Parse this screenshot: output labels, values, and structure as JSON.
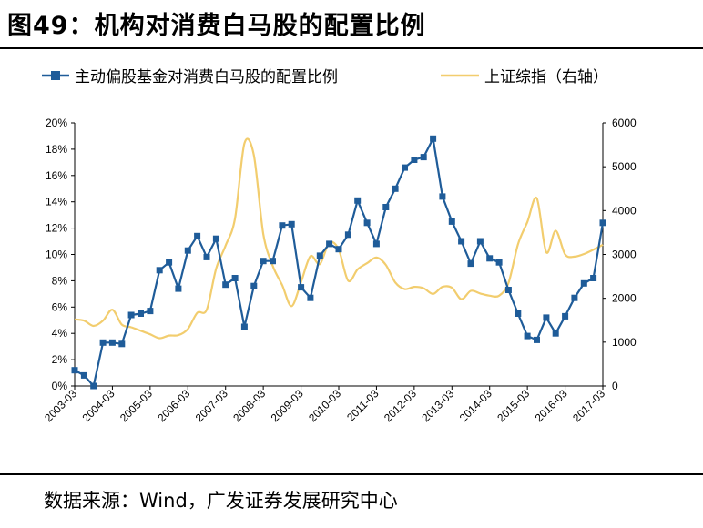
{
  "title": "图49：机构对消费白马股的配置比例",
  "source": "数据来源：Wind，广发证券发展研究中心",
  "colors": {
    "series1": "#1F5C99",
    "series2": "#F2CD6E"
  },
  "chart_data": {
    "type": "line",
    "categories": [
      "2003-03",
      "2004-03",
      "2005-03",
      "2006-03",
      "2007-03",
      "2008-03",
      "2009-03",
      "2010-03",
      "2011-03",
      "2012-03",
      "2013-03",
      "2014-03",
      "2015-03",
      "2016-03",
      "2017-03"
    ],
    "y_left": {
      "ylim": [
        0,
        20
      ],
      "ticks": [
        "0%",
        "2%",
        "4%",
        "6%",
        "8%",
        "10%",
        "12%",
        "14%",
        "16%",
        "18%",
        "20%"
      ]
    },
    "y_right": {
      "ylim": [
        0,
        6000
      ],
      "ticks": [
        "0",
        "1000",
        "2000",
        "3000",
        "4000",
        "5000",
        "6000"
      ]
    },
    "series": [
      {
        "name": "主动偏股基金对消费白马股的配置比例",
        "axis": "left",
        "marker": "square",
        "unit": "%",
        "x": [
          2003.0,
          2003.25,
          2003.5,
          2003.75,
          2004.0,
          2004.25,
          2004.5,
          2004.75,
          2005.0,
          2005.25,
          2005.5,
          2005.75,
          2006.0,
          2006.25,
          2006.5,
          2006.75,
          2007.0,
          2007.25,
          2007.5,
          2007.75,
          2008.0,
          2008.25,
          2008.5,
          2008.75,
          2009.0,
          2009.25,
          2009.5,
          2009.75,
          2010.0,
          2010.25,
          2010.5,
          2010.75,
          2011.0,
          2011.25,
          2011.5,
          2011.75,
          2012.0,
          2012.25,
          2012.5,
          2012.75,
          2013.0,
          2013.25,
          2013.5,
          2013.75,
          2014.0,
          2014.25,
          2014.5,
          2014.75,
          2015.0,
          2015.25,
          2015.5,
          2015.75,
          2016.0,
          2016.25,
          2016.5,
          2016.75,
          2017.0
        ],
        "values": [
          1.2,
          0.8,
          0.0,
          3.3,
          3.3,
          3.2,
          5.4,
          5.5,
          5.7,
          8.8,
          9.4,
          7.4,
          10.3,
          11.4,
          9.8,
          11.2,
          7.7,
          8.2,
          4.5,
          7.6,
          9.5,
          9.5,
          12.2,
          12.3,
          7.5,
          6.7,
          9.9,
          10.8,
          10.4,
          11.5,
          14.1,
          12.4,
          10.8,
          13.6,
          15.0,
          16.6,
          17.2,
          17.4,
          18.8,
          14.4,
          12.5,
          11.0,
          9.3,
          11.0,
          9.7,
          9.4,
          7.3,
          5.5,
          3.8,
          3.5,
          5.2,
          4.0,
          5.3,
          6.7,
          7.8,
          8.2,
          12.4
        ]
      },
      {
        "name": "上证综指（右轴）",
        "axis": "right",
        "x": [
          2003.0,
          2003.25,
          2003.5,
          2003.75,
          2004.0,
          2004.25,
          2004.5,
          2004.75,
          2005.0,
          2005.25,
          2005.5,
          2005.75,
          2006.0,
          2006.25,
          2006.5,
          2006.75,
          2007.0,
          2007.25,
          2007.5,
          2007.75,
          2008.0,
          2008.25,
          2008.5,
          2008.75,
          2009.0,
          2009.25,
          2009.5,
          2009.75,
          2010.0,
          2010.25,
          2010.5,
          2010.75,
          2011.0,
          2011.25,
          2011.5,
          2011.75,
          2012.0,
          2012.25,
          2012.5,
          2012.75,
          2013.0,
          2013.25,
          2013.5,
          2013.75,
          2014.0,
          2014.25,
          2014.5,
          2014.75,
          2015.0,
          2015.25,
          2015.5,
          2015.75,
          2016.0,
          2016.25,
          2016.5,
          2016.75,
          2017.0
        ],
        "values": [
          1520,
          1490,
          1370,
          1490,
          1740,
          1400,
          1340,
          1260,
          1180,
          1090,
          1150,
          1160,
          1300,
          1670,
          1740,
          2680,
          3200,
          3820,
          5530,
          5260,
          3470,
          2740,
          2300,
          1820,
          2370,
          2960,
          2780,
          3270,
          3110,
          2400,
          2660,
          2800,
          2930,
          2760,
          2360,
          2210,
          2260,
          2230,
          2100,
          2260,
          2240,
          1980,
          2170,
          2110,
          2060,
          2060,
          2350,
          3230,
          3740,
          4280,
          3050,
          3540,
          3000,
          2950,
          3010,
          3110,
          3220
        ]
      }
    ]
  }
}
